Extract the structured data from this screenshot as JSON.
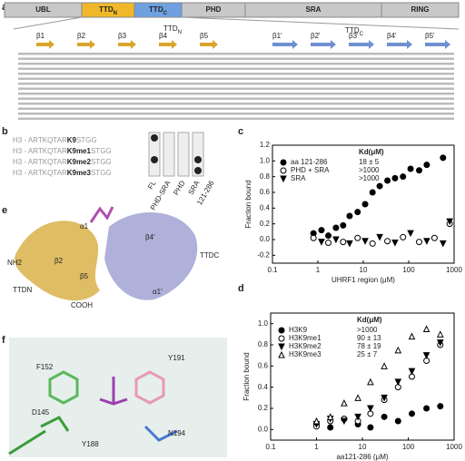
{
  "panels": {
    "a": "a",
    "b": "b",
    "c": "c",
    "d": "d",
    "e": "e",
    "f": "f"
  },
  "domains": [
    {
      "name": "UBL",
      "sub": "",
      "color": "#c8c8c8"
    },
    {
      "name": "TTD",
      "sub": "N",
      "color": "#f0b828"
    },
    {
      "name": "TTD",
      "sub": "C",
      "color": "#6fa0e0"
    },
    {
      "name": "PHD",
      "sub": "",
      "color": "#c8c8c8"
    },
    {
      "name": "SRA",
      "sub": "",
      "color": "#c8c8c8"
    },
    {
      "name": "RING",
      "sub": "",
      "color": "#c8c8c8"
    }
  ],
  "alignment": {
    "ttdn": {
      "name": "TTD",
      "sub": "N"
    },
    "ttdc": {
      "name": "TTD",
      "sub": "C"
    },
    "strands_n": [
      "β1",
      "β2",
      "β3",
      "β4",
      "β5"
    ],
    "strands_c": [
      "β1'",
      "β2'",
      "β3'",
      "β4'",
      "β5'"
    ]
  },
  "peptides": {
    "prefix": "H3 - ARTKQTAR",
    "suffix": "STGG",
    "mods": [
      "K9",
      "K9me1",
      "K9me2",
      "K9me3"
    ],
    "columns": [
      "FL",
      "PHD-SRA",
      "PHD",
      "SRA",
      "121-286"
    ]
  },
  "structure": {
    "nh2": "NH2",
    "ttdn": "TTDN",
    "cooh": "COOH",
    "ttdc": "TTDC",
    "a1": "α1",
    "a1p": "α1'",
    "b4p": "β4'",
    "b2": "β2",
    "b5": "β5"
  },
  "residues": [
    "F152",
    "Y191",
    "D145",
    "Y188",
    "N194"
  ],
  "chart_data": [
    {
      "type": "scatter",
      "x_label": "UHRF1 region (μM)",
      "y_label": "Fraction bound",
      "legend_title": "Kd(μM)",
      "xlog": true,
      "xlim": [
        0.1,
        1000
      ],
      "xticks": [
        0.1,
        1,
        10,
        100,
        1000
      ],
      "ylim": [
        -0.3,
        1.2
      ],
      "yticks": [
        -0.2,
        {
          "value": 0,
          "label": "0.0"
        },
        0.2,
        0.4,
        0.6,
        0.8,
        {
          "value": 1,
          "label": "1.0"
        },
        1.2
      ],
      "series": [
        {
          "name": "aa 121-286",
          "kd": "18 ± 5",
          "marker": "circle",
          "filled": true,
          "x": [
            0.8,
            1.2,
            1.7,
            2.5,
            3.6,
            5,
            7.5,
            11,
            16,
            23,
            34,
            50,
            75,
            110,
            170,
            250,
            570
          ],
          "values": [
            0.08,
            0.12,
            0.05,
            0.15,
            0.18,
            0.3,
            0.35,
            0.45,
            0.6,
            0.68,
            0.75,
            0.78,
            0.8,
            0.9,
            0.88,
            0.95,
            1.04
          ]
        },
        {
          "name": "PHD + SRA",
          "kd": ">1000",
          "marker": "circle",
          "filled": false,
          "x": [
            0.8,
            1.7,
            3.6,
            7.5,
            16,
            34,
            75,
            170,
            370,
            800
          ],
          "values": [
            0.02,
            -0.04,
            -0.03,
            0.02,
            -0.05,
            -0.02,
            0.03,
            -0.03,
            0.02,
            0.2
          ]
        },
        {
          "name": "SRA",
          "kd": ">1000",
          "marker": "tri-down",
          "filled": true,
          "x": [
            1.2,
            2.5,
            5,
            11,
            23,
            50,
            110,
            250,
            570,
            800
          ],
          "values": [
            -0.03,
            0.0,
            -0.05,
            -0.02,
            0.03,
            -0.04,
            0.08,
            -0.02,
            -0.05,
            0.23
          ]
        }
      ]
    },
    {
      "type": "scatter",
      "x_label": "aa121-286 (μM)",
      "y_label": "Fraction bound",
      "legend_title": "Kd(μM)",
      "xlog": true,
      "xlim": [
        0.1,
        1000
      ],
      "xticks": [
        0.1,
        1,
        10,
        100,
        1000
      ],
      "ylim": [
        -0.1,
        1.1
      ],
      "yticks": [
        {
          "value": 0,
          "label": "0.0"
        },
        0.2,
        0.4,
        0.6,
        0.8,
        {
          "value": 1,
          "label": "1.0"
        }
      ],
      "series": [
        {
          "name": "H3K9",
          "kd": ">1000",
          "marker": "circle",
          "filled": true,
          "x": [
            1,
            2,
            4,
            8,
            15,
            30,
            60,
            120,
            250,
            500
          ],
          "values": [
            0.05,
            0.02,
            0.1,
            0.05,
            0.02,
            0.12,
            0.08,
            0.15,
            0.2,
            0.22
          ]
        },
        {
          "name": "H3K9me1",
          "kd": "90 ± 13",
          "marker": "circle",
          "filled": false,
          "x": [
            1,
            2,
            4,
            8,
            15,
            30,
            60,
            120,
            250,
            500
          ],
          "values": [
            0.03,
            0.08,
            0.1,
            0.08,
            0.15,
            0.28,
            0.4,
            0.5,
            0.65,
            0.8
          ]
        },
        {
          "name": "H3K9me2",
          "kd": "78 ± 19",
          "marker": "tri-down",
          "filled": true,
          "x": [
            1,
            2,
            4,
            8,
            15,
            30,
            60,
            120,
            250,
            500
          ],
          "values": [
            0.05,
            0.1,
            0.08,
            0.12,
            0.2,
            0.3,
            0.45,
            0.55,
            0.7,
            0.82
          ]
        },
        {
          "name": "H3K9me3",
          "kd": "25 ± 7",
          "marker": "tri-up",
          "filled": false,
          "x": [
            1,
            2,
            4,
            8,
            15,
            30,
            60,
            120,
            250,
            500
          ],
          "values": [
            0.08,
            0.12,
            0.25,
            0.3,
            0.45,
            0.6,
            0.75,
            0.88,
            0.95,
            0.9
          ]
        }
      ]
    }
  ]
}
